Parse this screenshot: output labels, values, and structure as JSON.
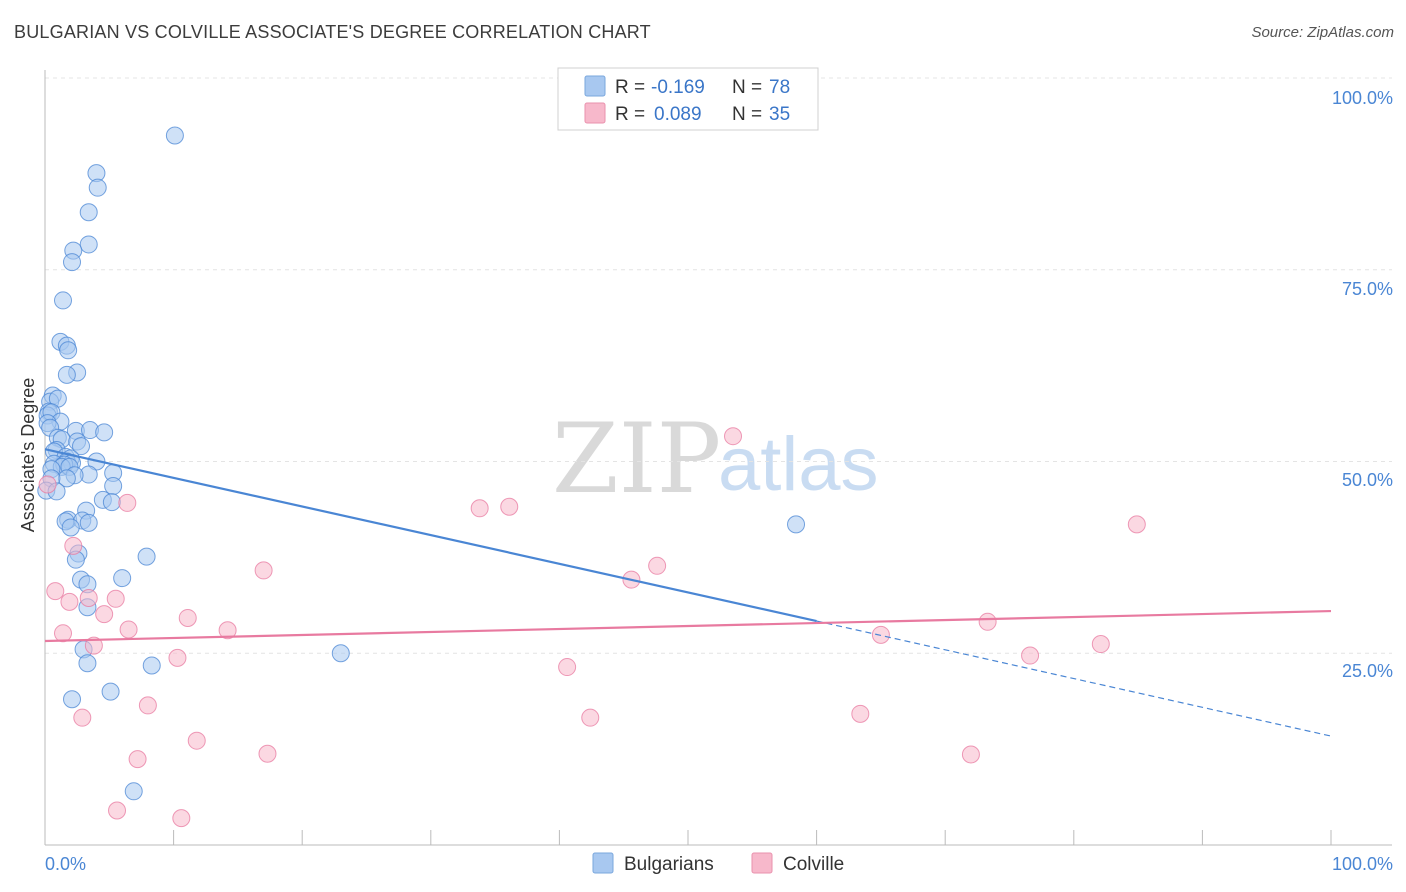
{
  "header": {
    "title": "BULGARIAN VS COLVILLE ASSOCIATE'S DEGREE CORRELATION CHART",
    "source": "Source: ZipAtlas.com"
  },
  "watermark": {
    "zip": "ZIP",
    "atlas": "atlas"
  },
  "legend": {
    "rows": [
      {
        "r_label": "R =",
        "r_value": "-0.169",
        "n_label": "N =",
        "n_value": "78",
        "color": "#a8c8f0"
      },
      {
        "r_label": "R =",
        "r_value": "0.089",
        "n_label": "N =",
        "n_value": "35",
        "color": "#f7b8cb"
      }
    ]
  },
  "chart_data": {
    "type": "scatter",
    "title": "BULGARIAN VS COLVILLE ASSOCIATE'S DEGREE CORRELATION CHART",
    "xlabel": "",
    "ylabel": "Associate's Degree",
    "xlim": [
      0,
      100
    ],
    "ylim": [
      0,
      100
    ],
    "x_tick_labels": [
      "0.0%",
      "100.0%"
    ],
    "y_ticks": [
      25,
      50,
      75,
      100
    ],
    "y_tick_labels": [
      "25.0%",
      "50.0%",
      "75.0%",
      "100.0%"
    ],
    "grid": true,
    "series": [
      {
        "name": "Bulgarians",
        "color": "#4a86d4",
        "fill": "#a8c8f0",
        "r": -0.169,
        "n": 78,
        "trend": {
          "x0": 0,
          "y0": 51.6,
          "x1": 60,
          "y1": 29.2,
          "dash_to_x": 100,
          "dash_to_y": 14.2
        },
        "points": [
          [
            10.1,
            92.5
          ],
          [
            4.0,
            87.6
          ],
          [
            4.1,
            85.7
          ],
          [
            3.4,
            82.5
          ],
          [
            3.4,
            78.3
          ],
          [
            2.2,
            77.5
          ],
          [
            2.1,
            76.0
          ],
          [
            1.4,
            71.0
          ],
          [
            1.2,
            65.6
          ],
          [
            1.7,
            65.1
          ],
          [
            1.8,
            64.5
          ],
          [
            2.5,
            61.6
          ],
          [
            1.7,
            61.3
          ],
          [
            0.6,
            58.6
          ],
          [
            0.4,
            57.8
          ],
          [
            1.0,
            58.2
          ],
          [
            0.3,
            56.5
          ],
          [
            0.2,
            56.0
          ],
          [
            0.5,
            56.4
          ],
          [
            1.2,
            55.2
          ],
          [
            0.2,
            55.0
          ],
          [
            0.4,
            54.4
          ],
          [
            2.4,
            54.0
          ],
          [
            3.5,
            54.1
          ],
          [
            4.6,
            53.8
          ],
          [
            1.0,
            53.1
          ],
          [
            1.3,
            52.9
          ],
          [
            2.5,
            52.6
          ],
          [
            2.8,
            52.0
          ],
          [
            0.9,
            51.5
          ],
          [
            0.7,
            51.3
          ],
          [
            1.6,
            50.6
          ],
          [
            2.0,
            50.4
          ],
          [
            1.7,
            50.0
          ],
          [
            4.0,
            50.0
          ],
          [
            2.1,
            49.8
          ],
          [
            0.7,
            49.7
          ],
          [
            1.5,
            49.6
          ],
          [
            1.3,
            49.3
          ],
          [
            1.9,
            49.3
          ],
          [
            0.5,
            49.0
          ],
          [
            3.4,
            48.3
          ],
          [
            2.3,
            48.2
          ],
          [
            5.3,
            48.5
          ],
          [
            1.7,
            47.8
          ],
          [
            0.5,
            47.8
          ],
          [
            5.3,
            46.8
          ],
          [
            0.1,
            46.2
          ],
          [
            0.9,
            46.1
          ],
          [
            4.5,
            45.0
          ],
          [
            5.2,
            44.7
          ],
          [
            3.2,
            43.6
          ],
          [
            1.8,
            42.4
          ],
          [
            1.6,
            42.2
          ],
          [
            2.9,
            42.3
          ],
          [
            3.4,
            42.0
          ],
          [
            2.0,
            41.4
          ],
          [
            58.4,
            41.8
          ],
          [
            2.6,
            38.0
          ],
          [
            7.9,
            37.6
          ],
          [
            2.4,
            37.2
          ],
          [
            6.0,
            34.8
          ],
          [
            2.8,
            34.6
          ],
          [
            3.3,
            34.0
          ],
          [
            3.3,
            31.0
          ],
          [
            3.0,
            25.5
          ],
          [
            23.0,
            25.0
          ],
          [
            3.3,
            23.7
          ],
          [
            8.3,
            23.4
          ],
          [
            5.1,
            20.0
          ],
          [
            2.1,
            19.0
          ],
          [
            6.9,
            7.0
          ]
        ]
      },
      {
        "name": "Colville",
        "color": "#e87aa0",
        "fill": "#f7b8cb",
        "r": 0.089,
        "n": 35,
        "trend": {
          "x0": 0,
          "y0": 26.6,
          "x1": 100,
          "y1": 30.5
        },
        "points": [
          [
            53.5,
            53.3
          ],
          [
            0.2,
            47.0
          ],
          [
            6.4,
            44.6
          ],
          [
            33.8,
            43.9
          ],
          [
            36.1,
            44.1
          ],
          [
            84.9,
            41.8
          ],
          [
            2.2,
            39.0
          ],
          [
            17.0,
            35.8
          ],
          [
            47.6,
            36.4
          ],
          [
            45.6,
            34.6
          ],
          [
            0.8,
            33.1
          ],
          [
            1.9,
            31.7
          ],
          [
            3.4,
            32.2
          ],
          [
            5.5,
            32.1
          ],
          [
            4.6,
            30.1
          ],
          [
            11.1,
            29.6
          ],
          [
            73.3,
            29.1
          ],
          [
            6.5,
            28.1
          ],
          [
            14.2,
            28.0
          ],
          [
            1.4,
            27.6
          ],
          [
            65.0,
            27.4
          ],
          [
            3.8,
            26.0
          ],
          [
            82.1,
            26.2
          ],
          [
            76.6,
            24.7
          ],
          [
            10.3,
            24.4
          ],
          [
            40.6,
            23.2
          ],
          [
            8.0,
            18.2
          ],
          [
            2.9,
            16.6
          ],
          [
            42.4,
            16.6
          ],
          [
            63.4,
            17.1
          ],
          [
            11.8,
            13.6
          ],
          [
            17.3,
            11.9
          ],
          [
            72.0,
            11.8
          ],
          [
            7.2,
            11.2
          ],
          [
            5.6,
            4.5
          ],
          [
            10.6,
            3.5
          ]
        ]
      }
    ]
  },
  "bottom_legend": {
    "items": [
      {
        "label": "Bulgarians",
        "color": "#a8c8f0"
      },
      {
        "label": "Colville",
        "color": "#f7b8cb"
      }
    ]
  }
}
